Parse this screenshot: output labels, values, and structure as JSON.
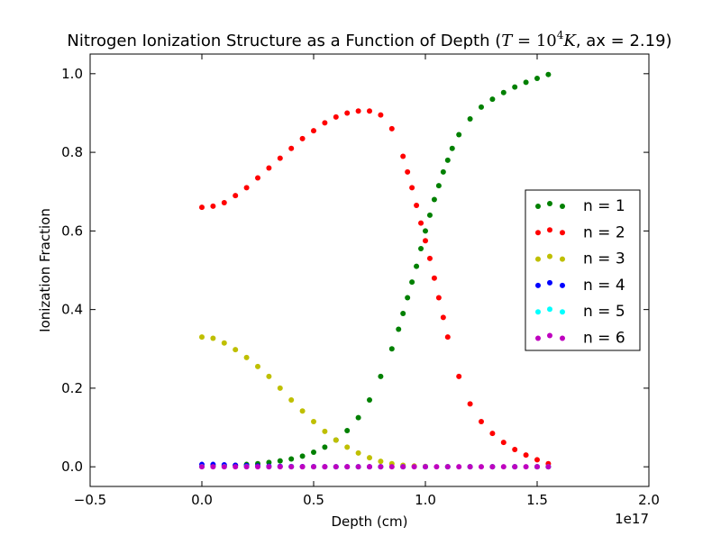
{
  "chart_data": {
    "type": "scatter",
    "title_prefix": "Nitrogen Ionization Structure as a Function of Depth (",
    "title_math_var": "T",
    "title_math_eq": " = ",
    "title_math_base": "10",
    "title_math_exp": "4",
    "title_math_unit": "K",
    "title_suffix": ", ax = 2.19)",
    "xlabel": "Depth (cm)",
    "ylabel": "Ionization Fraction",
    "x_offset_label": "1e17",
    "x_scale": 1e+17,
    "xlim": [
      -0.5,
      2.0
    ],
    "ylim": [
      -0.05,
      1.05
    ],
    "x_ticks": [
      -0.5,
      0.0,
      0.5,
      1.0,
      1.5,
      2.0
    ],
    "x_tick_labels": [
      "−0.5",
      "0.0",
      "0.5",
      "1.0",
      "1.5",
      "2.0"
    ],
    "y_ticks": [
      0.0,
      0.2,
      0.4,
      0.6,
      0.8,
      1.0
    ],
    "y_tick_labels": [
      "0.0",
      "0.2",
      "0.4",
      "0.6",
      "0.8",
      "1.0"
    ],
    "grid": false,
    "legend_position": "right",
    "series": [
      {
        "name": "n = 1",
        "color": "#008000",
        "x": [
          0.0,
          0.05,
          0.1,
          0.15,
          0.2,
          0.25,
          0.3,
          0.35,
          0.4,
          0.45,
          0.5,
          0.55,
          0.6,
          0.65,
          0.7,
          0.75,
          0.8,
          0.85,
          0.88,
          0.9,
          0.92,
          0.94,
          0.96,
          0.98,
          1.0,
          1.02,
          1.04,
          1.06,
          1.08,
          1.1,
          1.12,
          1.15,
          1.2,
          1.25,
          1.3,
          1.35,
          1.4,
          1.45,
          1.5,
          1.55
        ],
        "y": [
          0.001,
          0.002,
          0.003,
          0.004,
          0.006,
          0.008,
          0.011,
          0.015,
          0.02,
          0.027,
          0.037,
          0.05,
          0.068,
          0.092,
          0.125,
          0.17,
          0.23,
          0.3,
          0.35,
          0.39,
          0.43,
          0.47,
          0.51,
          0.555,
          0.6,
          0.64,
          0.68,
          0.715,
          0.75,
          0.78,
          0.81,
          0.845,
          0.885,
          0.915,
          0.935,
          0.952,
          0.966,
          0.978,
          0.988,
          0.998
        ]
      },
      {
        "name": "n = 2",
        "color": "#ff0000",
        "x": [
          0.0,
          0.05,
          0.1,
          0.15,
          0.2,
          0.25,
          0.3,
          0.35,
          0.4,
          0.45,
          0.5,
          0.55,
          0.6,
          0.65,
          0.7,
          0.75,
          0.8,
          0.85,
          0.9,
          0.92,
          0.94,
          0.96,
          0.98,
          1.0,
          1.02,
          1.04,
          1.06,
          1.08,
          1.1,
          1.15,
          1.2,
          1.25,
          1.3,
          1.35,
          1.4,
          1.45,
          1.5,
          1.55
        ],
        "y": [
          0.66,
          0.663,
          0.672,
          0.69,
          0.71,
          0.735,
          0.76,
          0.785,
          0.81,
          0.835,
          0.855,
          0.875,
          0.89,
          0.9,
          0.905,
          0.905,
          0.895,
          0.86,
          0.79,
          0.75,
          0.71,
          0.665,
          0.62,
          0.575,
          0.53,
          0.48,
          0.43,
          0.38,
          0.33,
          0.23,
          0.16,
          0.115,
          0.085,
          0.062,
          0.044,
          0.03,
          0.018,
          0.008
        ]
      },
      {
        "name": "n = 3",
        "color": "#bfbf00",
        "x": [
          0.0,
          0.05,
          0.1,
          0.15,
          0.2,
          0.25,
          0.3,
          0.35,
          0.4,
          0.45,
          0.5,
          0.55,
          0.6,
          0.65,
          0.7,
          0.75,
          0.8,
          0.85,
          0.9,
          0.95,
          1.0,
          1.1,
          1.2,
          1.3,
          1.4,
          1.5,
          1.55
        ],
        "y": [
          0.33,
          0.327,
          0.315,
          0.298,
          0.278,
          0.255,
          0.23,
          0.2,
          0.17,
          0.142,
          0.115,
          0.09,
          0.068,
          0.05,
          0.035,
          0.023,
          0.014,
          0.008,
          0.004,
          0.002,
          0.001,
          0.0003,
          0.0001,
          0.0,
          0.0,
          0.0,
          0.0
        ]
      },
      {
        "name": "n = 4",
        "color": "#0000ff",
        "x": [
          0.0,
          0.05,
          0.1,
          0.15,
          0.2,
          0.25,
          0.3,
          0.35,
          0.4,
          0.45,
          0.5,
          0.55,
          0.6,
          0.65,
          0.7,
          0.75,
          0.8,
          0.9,
          1.0,
          1.1,
          1.2,
          1.3,
          1.4,
          1.5,
          1.55
        ],
        "y": [
          0.006,
          0.006,
          0.005,
          0.004,
          0.003,
          0.002,
          0.0015,
          0.001,
          0.0008,
          0.0005,
          0.0003,
          0.0002,
          0.0001,
          0.0,
          0.0,
          0.0,
          0.0,
          0.0,
          0.0,
          0.0,
          0.0,
          0.0,
          0.0,
          0.0,
          0.0
        ]
      },
      {
        "name": "n = 5",
        "color": "#00ffff",
        "x": [
          0.0,
          0.1,
          0.2,
          0.3,
          0.4,
          0.5,
          0.6,
          0.7,
          0.8,
          0.9,
          1.0,
          1.1,
          1.2,
          1.3,
          1.4,
          1.5,
          1.55
        ],
        "y": [
          0.0005,
          0.0004,
          0.0003,
          0.0002,
          0.0001,
          0.0,
          0.0,
          0.0,
          0.0,
          0.0,
          0.0,
          0.0,
          0.0,
          0.0,
          0.0,
          0.0,
          0.0
        ]
      },
      {
        "name": "n = 6",
        "color": "#bf00bf",
        "x": [
          0.0,
          0.05,
          0.1,
          0.15,
          0.2,
          0.25,
          0.3,
          0.35,
          0.4,
          0.45,
          0.5,
          0.55,
          0.6,
          0.65,
          0.7,
          0.75,
          0.8,
          0.85,
          0.9,
          0.95,
          1.0,
          1.05,
          1.1,
          1.15,
          1.2,
          1.25,
          1.3,
          1.35,
          1.4,
          1.45,
          1.5,
          1.55
        ],
        "y": [
          0.0,
          0.0,
          0.0,
          0.0,
          0.0,
          0.0,
          0.0,
          0.0,
          0.0,
          0.0,
          0.0,
          0.0,
          0.0,
          0.0,
          0.0,
          0.0,
          0.0,
          0.0,
          0.0,
          0.0,
          0.0,
          0.0,
          0.0,
          0.0,
          0.0,
          0.0,
          0.0,
          0.0,
          0.0,
          0.0,
          0.0,
          0.0
        ]
      }
    ]
  }
}
